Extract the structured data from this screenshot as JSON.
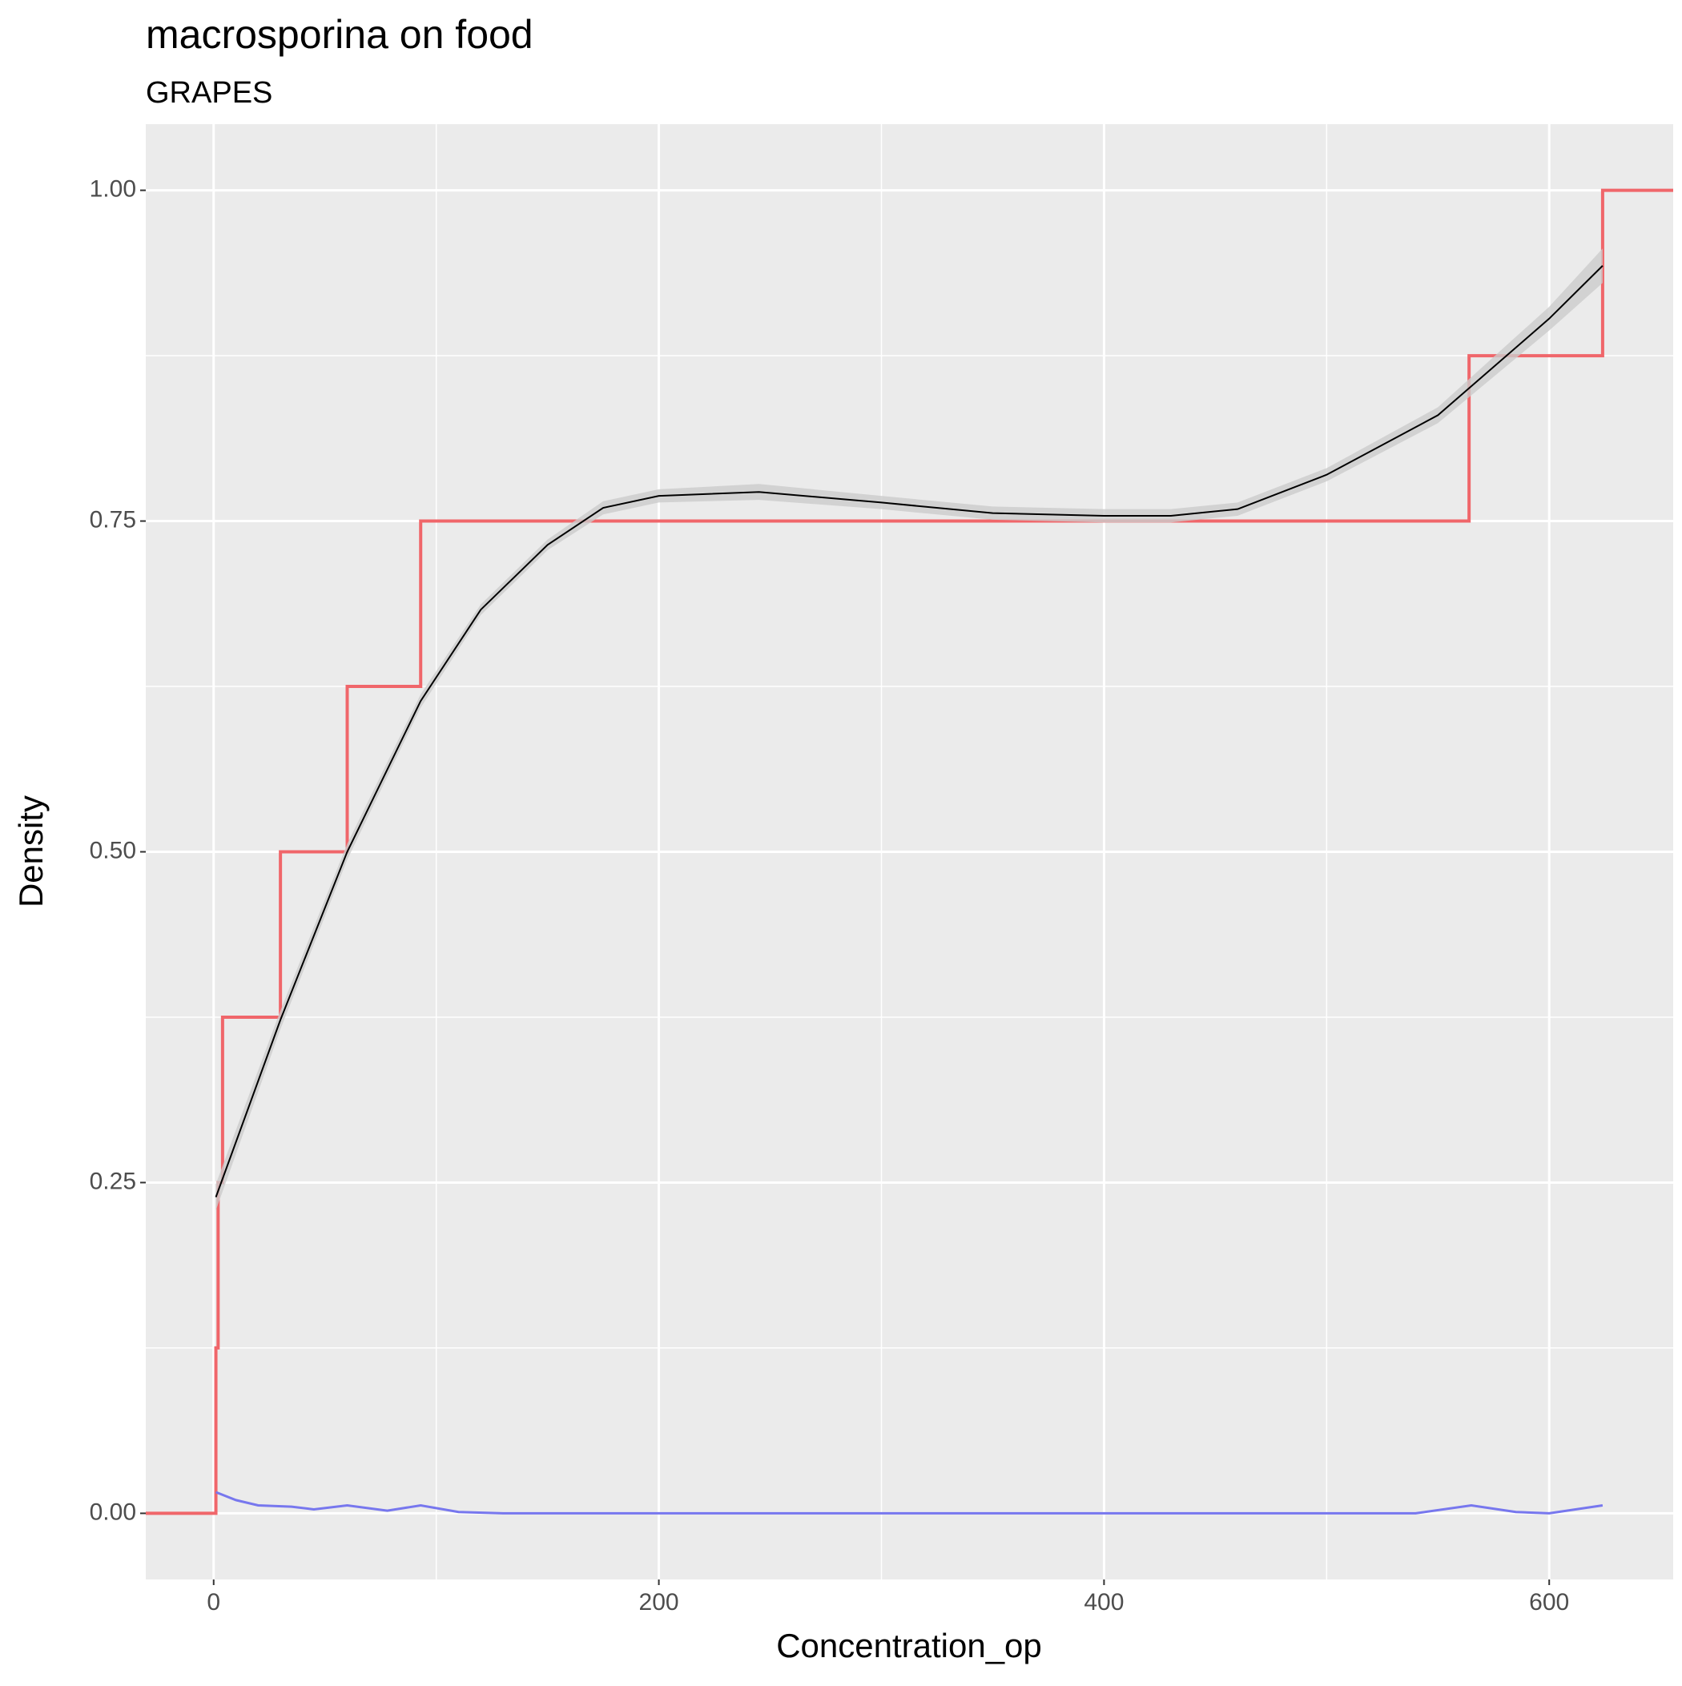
{
  "chart_data": {
    "type": "line",
    "title": "macrosporina on food",
    "subtitle": "GRAPES",
    "x_label": "Concentration_op",
    "y_label": "Density",
    "xlim": [
      -30.5,
      655.7
    ],
    "ylim": [
      -0.05,
      1.05
    ],
    "xticks": [
      0,
      200,
      400,
      600
    ],
    "yticks": [
      {
        "value": 0,
        "label": "0.00"
      },
      {
        "value": 0.25,
        "label": "0.25"
      },
      {
        "value": 0.5,
        "label": "0.50"
      },
      {
        "value": 0.75,
        "label": "0.75"
      },
      {
        "value": 1,
        "label": "1.00"
      }
    ],
    "grid": true,
    "series": [
      {
        "type": "step",
        "color": "#f0666a",
        "x": [
          1,
          2,
          4,
          30,
          60,
          93,
          564,
          624
        ],
        "values": [
          0.125,
          0.25,
          0.375,
          0.5,
          0.625,
          0.75,
          0.875,
          1
        ]
      },
      {
        "type": "smooth",
        "color": "#000000",
        "band_color": "#cccccc",
        "x": [
          1,
          30,
          60,
          93,
          120,
          150,
          175,
          200,
          245,
          300,
          350,
          400,
          430,
          460,
          500,
          550,
          600,
          624
        ],
        "values": [
          0.239,
          0.373,
          0.5,
          0.614,
          0.683,
          0.732,
          0.76,
          0.769,
          0.772,
          0.764,
          0.756,
          0.754,
          0.754,
          0.759,
          0.785,
          0.83,
          0.903,
          0.943
        ],
        "lower": [
          0.229,
          0.366,
          0.494,
          0.609,
          0.679,
          0.728,
          0.755,
          0.764,
          0.766,
          0.759,
          0.751,
          0.749,
          0.749,
          0.754,
          0.78,
          0.824,
          0.894,
          0.93
        ],
        "upper": [
          0.249,
          0.38,
          0.506,
          0.619,
          0.687,
          0.736,
          0.765,
          0.774,
          0.778,
          0.769,
          0.761,
          0.759,
          0.759,
          0.764,
          0.79,
          0.836,
          0.912,
          0.956
        ]
      },
      {
        "type": "line",
        "color": "#7777ee",
        "x": [
          1,
          10,
          20,
          35,
          45,
          60,
          78,
          93,
          110,
          130,
          200,
          300,
          400,
          500,
          540,
          565,
          585,
          600,
          624
        ],
        "values": [
          0.016,
          0.01,
          0.006,
          0.005,
          0.003,
          0.006,
          0.002,
          0.006,
          0.001,
          0,
          0,
          0,
          0,
          0,
          0,
          0.006,
          0.001,
          0,
          0.006
        ]
      }
    ]
  }
}
